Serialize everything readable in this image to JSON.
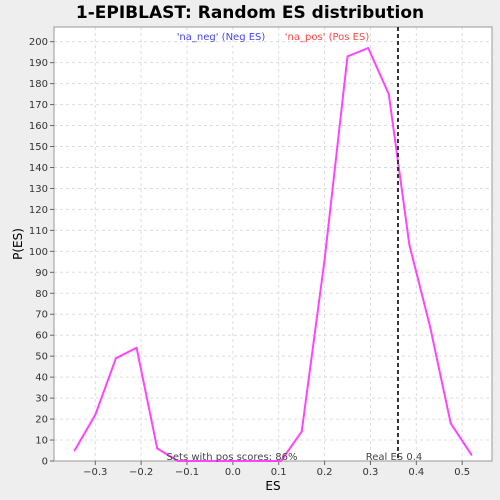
{
  "chart_data": {
    "type": "line",
    "title": "1-EPIBLAST: Random ES distribution",
    "xlabel": "ES",
    "ylabel": "P(ES)",
    "xlim": [
      -0.39,
      0.565
    ],
    "ylim": [
      0,
      207
    ],
    "x_ticks": [
      -0.3,
      -0.2,
      -0.1,
      0.0,
      0.1,
      0.2,
      0.3,
      0.4,
      0.5
    ],
    "x_tick_labels": [
      "−0.3",
      "−0.2",
      "−0.1",
      "0.0",
      "0.1",
      "0.2",
      "0.3",
      "0.4",
      "0.5"
    ],
    "y_ticks": [
      0,
      10,
      20,
      30,
      40,
      50,
      60,
      70,
      80,
      90,
      100,
      110,
      120,
      130,
      140,
      150,
      160,
      170,
      180,
      190,
      200
    ],
    "grid": true,
    "legend_position": "top-center",
    "legend": [
      {
        "label": "'na_neg' (Neg ES)",
        "color": "#4444ff"
      },
      {
        "label": "'na_pos' (Pos ES)",
        "color": "#ff4444"
      }
    ],
    "series": [
      {
        "color": "#ff44ff",
        "x": [
          -0.345,
          -0.3,
          -0.255,
          -0.21,
          -0.165,
          -0.12,
          -0.075,
          -0.03,
          0.015,
          0.06,
          0.105,
          0.15,
          0.2,
          0.25,
          0.295,
          0.34,
          0.385,
          0.43,
          0.475,
          0.52
        ],
        "y": [
          5,
          22,
          49,
          54,
          6,
          0,
          0,
          0,
          0,
          0,
          0,
          14,
          96,
          193,
          197,
          175,
          103,
          64,
          18,
          3
        ]
      }
    ],
    "real_es": {
      "x": 0.36,
      "label": "Real ES 0.4"
    },
    "annotation": "Sets with pos scores: 86%"
  }
}
